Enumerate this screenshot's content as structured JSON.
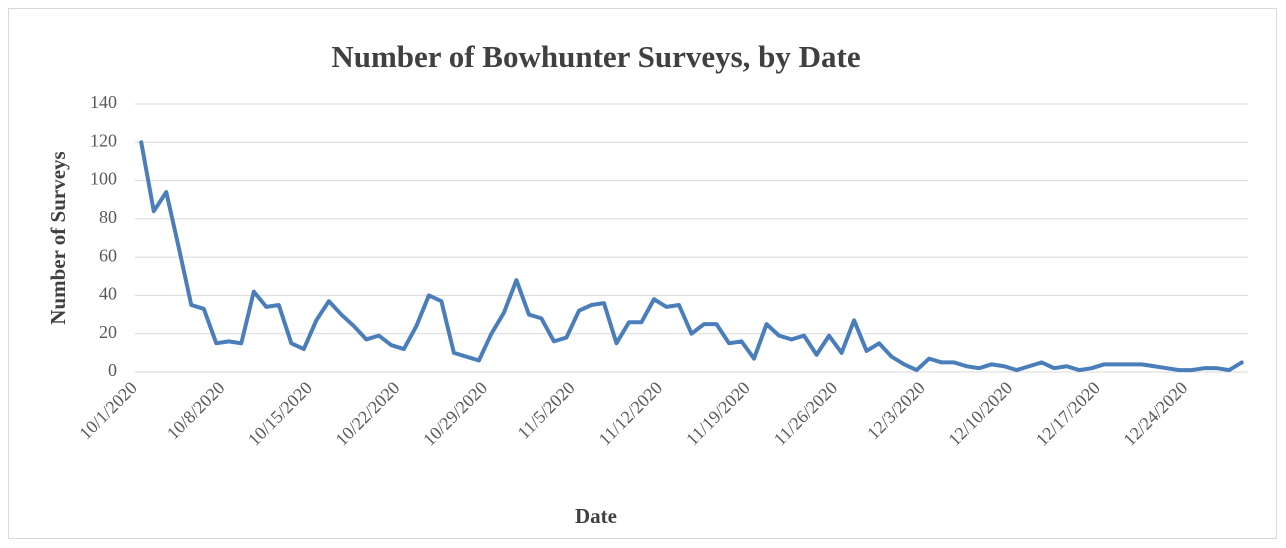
{
  "chart_data": {
    "type": "line",
    "title": "Number of Bowhunter Surveys, by Date",
    "x_label": "Date",
    "y_label": "Number of Surveys",
    "categories": [
      "10/1/2020",
      null,
      null,
      null,
      null,
      null,
      null,
      "10/8/2020",
      null,
      null,
      null,
      null,
      null,
      null,
      "10/15/2020",
      null,
      null,
      null,
      null,
      null,
      null,
      "10/22/2020",
      null,
      null,
      null,
      null,
      null,
      null,
      "10/29/2020",
      null,
      null,
      null,
      null,
      null,
      null,
      "11/5/2020",
      null,
      null,
      null,
      null,
      null,
      null,
      "11/12/2020",
      null,
      null,
      null,
      null,
      null,
      null,
      "11/19/2020",
      null,
      null,
      null,
      null,
      null,
      null,
      "11/26/2020",
      null,
      null,
      null,
      null,
      null,
      null,
      "12/3/2020",
      null,
      null,
      null,
      null,
      null,
      null,
      "12/10/2020",
      null,
      null,
      null,
      null,
      null,
      null,
      "12/17/2020",
      null,
      null,
      null,
      null,
      null,
      null,
      "12/24/2020",
      null,
      null,
      null,
      null
    ],
    "series": [
      {
        "name": "Number of Surveys",
        "color": "#4a7ebb",
        "values": [
          120,
          84,
          94,
          65,
          35,
          33,
          15,
          16,
          15,
          42,
          34,
          35,
          15,
          12,
          27,
          37,
          30,
          24,
          17,
          19,
          14,
          12,
          24,
          40,
          37,
          10,
          8,
          6,
          20,
          31,
          48,
          30,
          28,
          16,
          18,
          32,
          35,
          36,
          15,
          26,
          26,
          38,
          34,
          35,
          20,
          25,
          25,
          15,
          16,
          7,
          25,
          19,
          17,
          19,
          9,
          19,
          10,
          27,
          11,
          15,
          8,
          4,
          1,
          7,
          5,
          5,
          3,
          2,
          4,
          3,
          1,
          3,
          5,
          2,
          3,
          1,
          2,
          4,
          4,
          4,
          4,
          3,
          2,
          1,
          1,
          2,
          2,
          1,
          5
        ]
      }
    ],
    "ylim": [
      0,
      140
    ],
    "yticks": [
      0,
      20,
      40,
      60,
      80,
      100,
      120,
      140
    ],
    "grid": true
  }
}
